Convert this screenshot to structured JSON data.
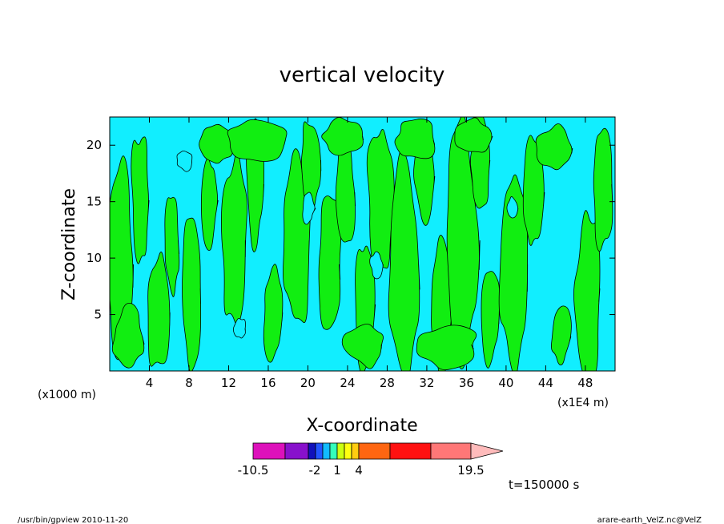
{
  "chart_data": {
    "type": "heatmap",
    "title": "vertical velocity",
    "xlabel": "X-coordinate",
    "ylabel": "Z-coordinate",
    "x_unit_left": "(x1000 m)",
    "x_unit_right": "(x1E4 m)",
    "x_ticks": [
      "4",
      "8",
      "12",
      "16",
      "20",
      "24",
      "28",
      "32",
      "36",
      "40",
      "44",
      "48"
    ],
    "y_ticks": [
      "5",
      "10",
      "15",
      "20"
    ],
    "xlim": [
      0,
      51
    ],
    "ylim": [
      0,
      22.5
    ],
    "colorbar": {
      "colors": [
        "#dd11bb",
        "#8811cc",
        "#1111bb",
        "#2255ff",
        "#11bbff",
        "#33ffbb",
        "#ccff11",
        "#ffff11",
        "#ffcc11",
        "#ff6611",
        "#ff1111",
        "#ff7777",
        "#ffbbbb"
      ],
      "tick_labels": [
        "-10.5",
        "-2",
        "1",
        "4",
        "19.5"
      ]
    },
    "dominant_fill": {
      "background": "#11eeff",
      "contours": "#11ee11"
    },
    "time_label": "t=150000 s",
    "footer_left": "/usr/bin/gpview  2010-11-20",
    "footer_right": "arare-earth_VelZ.nc@VelZ"
  }
}
